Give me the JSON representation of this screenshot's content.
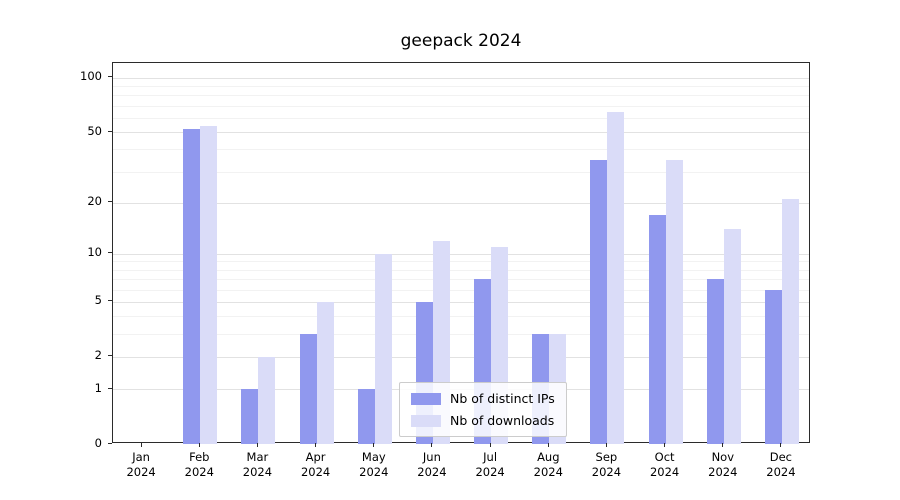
{
  "title": "geepack 2024",
  "chart_data": {
    "type": "bar",
    "title": "geepack 2024",
    "categories": [
      "Jan",
      "Feb",
      "Mar",
      "Apr",
      "May",
      "Jun",
      "Jul",
      "Aug",
      "Sep",
      "Oct",
      "Nov",
      "Dec"
    ],
    "year": "2024",
    "series": [
      {
        "name": "Nb of distinct IPs",
        "color": "#9098ee",
        "values": [
          0,
          52,
          1,
          3,
          1,
          5,
          7,
          3,
          35,
          17,
          7,
          6
        ]
      },
      {
        "name": "Nb of downloads",
        "color": "#dadcf8",
        "values": [
          0,
          54,
          2,
          5,
          10,
          12,
          11,
          3,
          65,
          35,
          14,
          21
        ]
      }
    ],
    "yscale": "log1p",
    "ylim": [
      0,
      121
    ],
    "yticks": [
      0,
      1,
      2,
      5,
      10,
      20,
      50,
      100
    ],
    "minor_gridlines": [
      3,
      4,
      6,
      7,
      8,
      9,
      30,
      40,
      60,
      70,
      80,
      90
    ],
    "grid": true,
    "legend_position": "lower center",
    "xlabel": "",
    "ylabel": ""
  }
}
